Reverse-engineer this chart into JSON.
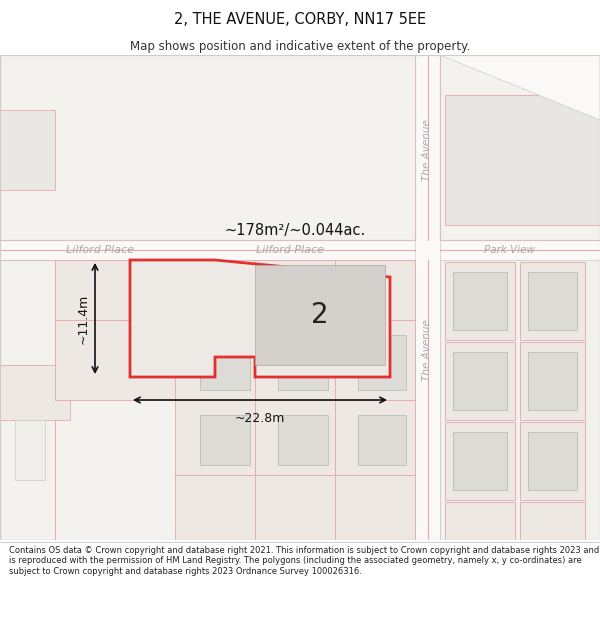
{
  "title": "2, THE AVENUE, CORBY, NN17 5EE",
  "subtitle": "Map shows position and indicative extent of the property.",
  "footer": "Contains OS data © Crown copyright and database right 2021. This information is subject to Crown copyright and database rights 2023 and is reproduced with the permission of HM Land Registry. The polygons (including the associated geometry, namely x, y co-ordinates) are subject to Crown copyright and database rights 2023 Ordnance Survey 100026316.",
  "area_label": "~178m²/~0.044ac.",
  "number_label": "2",
  "dim_width": "~22.8m",
  "dim_height": "~11.4m",
  "road_name_lp1": "Lilford Place",
  "road_name_lp2": "Lilford Place",
  "road_name_av1": "The Avenue",
  "road_name_av2": "The Avenue",
  "road_name_pv": "Park View",
  "bg_color": "#f2f0ed",
  "road_fill": "#faf9f8",
  "plot_red": "#e03030",
  "plot_pink": "#e8a8a8",
  "plot_fill_highlight": "#e8e5e0",
  "plot_fill_bg": "#eceae6",
  "building_fill": "#dddbd6",
  "building_fill_dark": "#d4d1cc",
  "road_label_color": "#aaaaaa",
  "text_color": "#222222"
}
